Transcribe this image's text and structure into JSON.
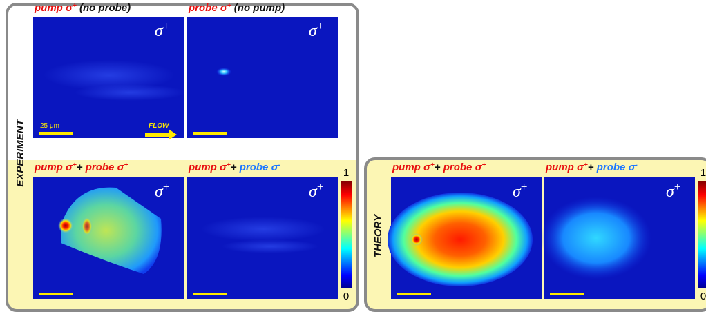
{
  "experiment": {
    "label": "EXPERIMENT",
    "panels": [
      {
        "title": [
          {
            "text": "pump σ",
            "color": "#e8100f"
          },
          {
            "text": "+",
            "color": "#e8100f",
            "sup": true
          },
          {
            "text": "  (no probe)",
            "color": "#111111"
          }
        ],
        "corner": {
          "base": "σ",
          "sup": "+"
        },
        "scale_bar": "25 μm",
        "flow": "FLOW"
      },
      {
        "title": [
          {
            "text": "probe σ",
            "color": "#e8100f"
          },
          {
            "text": "+",
            "color": "#e8100f",
            "sup": true
          },
          {
            "text": "  (no pump)",
            "color": "#111111"
          }
        ],
        "corner": {
          "base": "σ",
          "sup": "+"
        }
      },
      {
        "title": [
          {
            "text": "pump σ",
            "color": "#e8100f"
          },
          {
            "text": "+",
            "color": "#e8100f",
            "sup": true
          },
          {
            "text": "+ ",
            "color": "#111111"
          },
          {
            "text": "probe σ",
            "color": "#e8100f"
          },
          {
            "text": "+",
            "color": "#e8100f",
            "sup": true
          }
        ],
        "corner": {
          "base": "σ",
          "sup": "+"
        }
      },
      {
        "title": [
          {
            "text": "pump σ",
            "color": "#e8100f"
          },
          {
            "text": "+",
            "color": "#e8100f",
            "sup": true
          },
          {
            "text": "+ ",
            "color": "#111111"
          },
          {
            "text": "probe σ",
            "color": "#1e78ff"
          },
          {
            "text": "-",
            "color": "#1e78ff",
            "sup": true
          }
        ],
        "corner": {
          "base": "σ",
          "sup": "+"
        }
      }
    ],
    "colorbar": {
      "max": 1,
      "min": 0
    }
  },
  "theory": {
    "label": "THEORY",
    "panels": [
      {
        "title": [
          {
            "text": "pump σ",
            "color": "#e8100f"
          },
          {
            "text": "+",
            "color": "#e8100f",
            "sup": true
          },
          {
            "text": "+ ",
            "color": "#111111"
          },
          {
            "text": "probe σ",
            "color": "#e8100f"
          },
          {
            "text": "+",
            "color": "#e8100f",
            "sup": true
          }
        ],
        "corner": {
          "base": "σ",
          "sup": "+"
        }
      },
      {
        "title": [
          {
            "text": "pump σ",
            "color": "#e8100f"
          },
          {
            "text": "+",
            "color": "#e8100f",
            "sup": true
          },
          {
            "text": "+ ",
            "color": "#111111"
          },
          {
            "text": "probe σ",
            "color": "#1e78ff"
          },
          {
            "text": "-",
            "color": "#1e78ff",
            "sup": true
          }
        ],
        "corner": {
          "base": "σ",
          "sup": "+"
        }
      }
    ],
    "colorbar": {
      "max": 1,
      "min": 0
    }
  }
}
